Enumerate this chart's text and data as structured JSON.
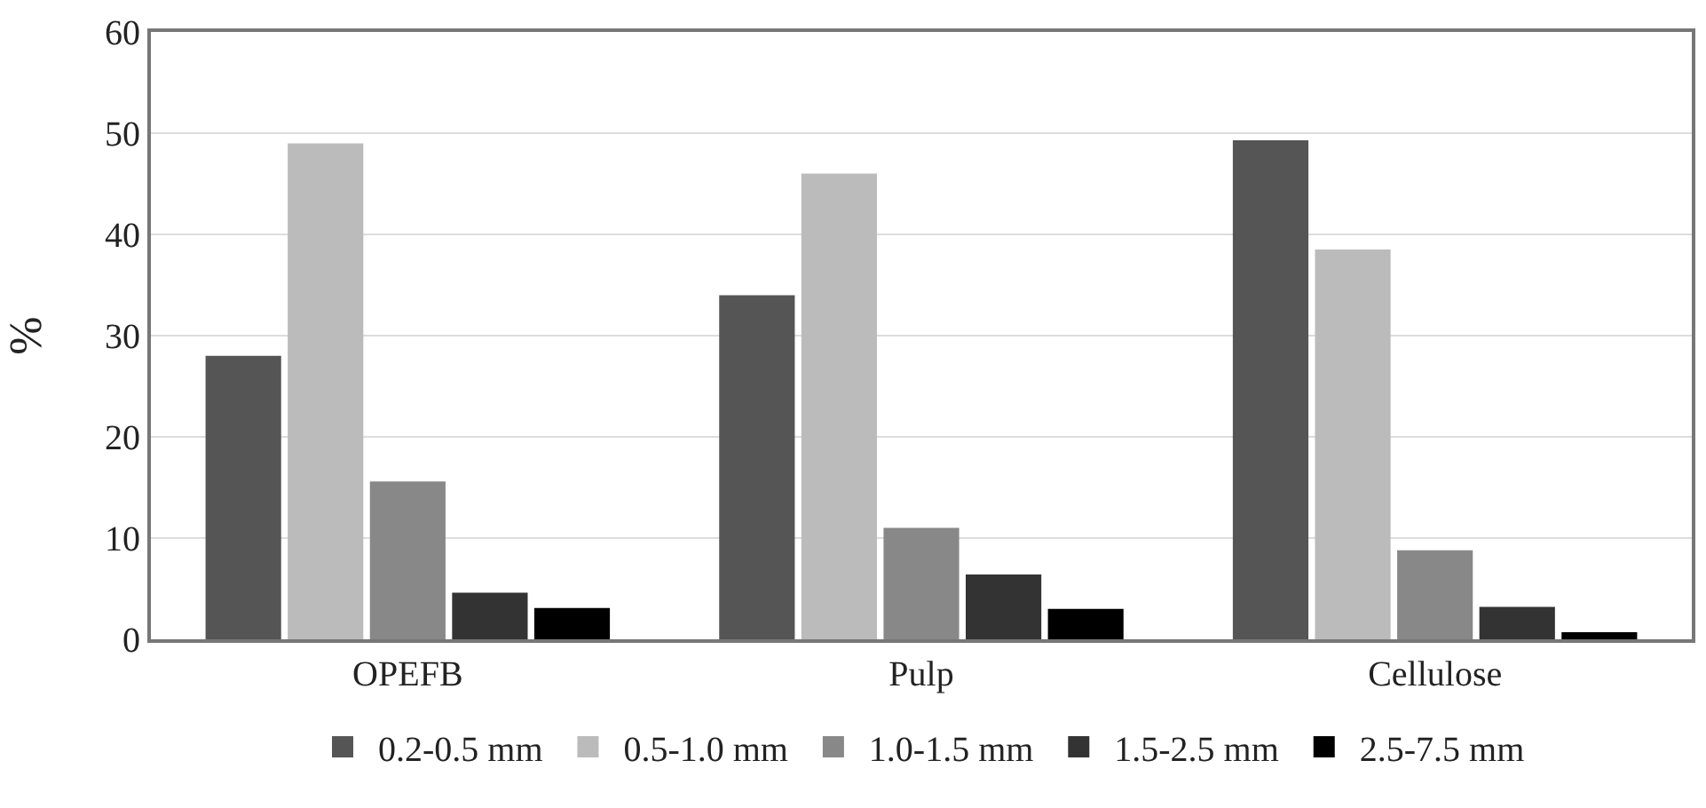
{
  "chart_data": {
    "type": "bar",
    "ylabel": "%",
    "categories": [
      "OPEFB",
      "Pulp",
      "Cellulose"
    ],
    "series": [
      {
        "name": "0.2-0.5 mm",
        "color": "#555555",
        "values": [
          28,
          34,
          49.3
        ]
      },
      {
        "name": "0.5-1.0 mm",
        "color": "#bbbbbb",
        "values": [
          49,
          46,
          38.5
        ]
      },
      {
        "name": "1.0-1.5 mm",
        "color": "#888888",
        "values": [
          15.6,
          11,
          8.8
        ]
      },
      {
        "name": "1.5-2.5 mm",
        "color": "#333333",
        "values": [
          4.6,
          6.4,
          3.2
        ]
      },
      {
        "name": "2.5-7.5 mm",
        "color": "#000000",
        "values": [
          3.1,
          3,
          0.7
        ]
      }
    ],
    "ylim": [
      0,
      60
    ],
    "yticks": [
      0,
      10,
      20,
      30,
      40,
      50,
      60
    ],
    "grid": "y",
    "legend": "bottom"
  }
}
